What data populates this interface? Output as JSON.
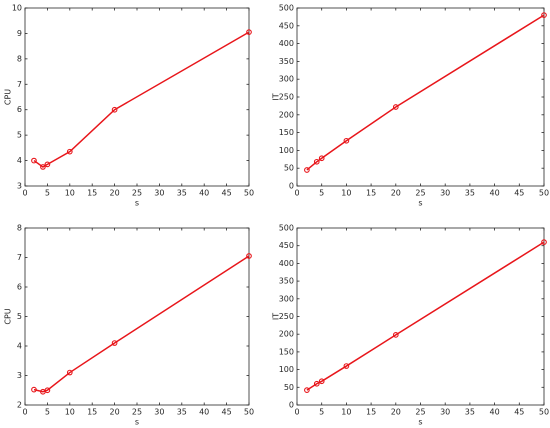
{
  "chart_data": [
    {
      "type": "line",
      "x": [
        2,
        4,
        5,
        10,
        20,
        50
      ],
      "values": [
        4.0,
        3.75,
        3.85,
        4.35,
        6.0,
        9.05
      ],
      "color": "#e8161b",
      "xlabel": "s",
      "ylabel": "CPU",
      "xlim": [
        0,
        50
      ],
      "xticks": [
        0,
        5,
        10,
        15,
        20,
        25,
        30,
        35,
        40,
        45,
        50
      ],
      "ylim": [
        3,
        10
      ],
      "yticks": [
        3,
        4,
        5,
        6,
        7,
        8,
        9,
        10
      ]
    },
    {
      "type": "line",
      "x": [
        2,
        4,
        5,
        10,
        20,
        50
      ],
      "values": [
        45,
        68,
        78,
        127,
        222,
        480
      ],
      "color": "#e8161b",
      "xlabel": "s",
      "ylabel": "IT",
      "xlim": [
        0,
        50
      ],
      "xticks": [
        0,
        5,
        10,
        15,
        20,
        25,
        30,
        35,
        40,
        45,
        50
      ],
      "ylim": [
        0,
        500
      ],
      "yticks": [
        0,
        50,
        100,
        150,
        200,
        250,
        300,
        350,
        400,
        450,
        500
      ]
    },
    {
      "type": "line",
      "x": [
        2,
        4,
        5,
        10,
        20,
        50
      ],
      "values": [
        2.52,
        2.45,
        2.5,
        3.1,
        4.1,
        7.05
      ],
      "color": "#e8161b",
      "xlabel": "s",
      "ylabel": "CPU",
      "xlim": [
        0,
        50
      ],
      "xticks": [
        0,
        5,
        10,
        15,
        20,
        25,
        30,
        35,
        40,
        45,
        50
      ],
      "ylim": [
        2,
        8
      ],
      "yticks": [
        2,
        3,
        4,
        5,
        6,
        7,
        8
      ]
    },
    {
      "type": "line",
      "x": [
        2,
        4,
        5,
        10,
        20,
        50
      ],
      "values": [
        42,
        60,
        67,
        110,
        198,
        460
      ],
      "color": "#e8161b",
      "xlabel": "s",
      "ylabel": "IT",
      "xlim": [
        0,
        50
      ],
      "xticks": [
        0,
        5,
        10,
        15,
        20,
        25,
        30,
        35,
        40,
        45,
        50
      ],
      "ylim": [
        0,
        500
      ],
      "yticks": [
        0,
        50,
        100,
        150,
        200,
        250,
        300,
        350,
        400,
        450,
        500
      ]
    }
  ]
}
